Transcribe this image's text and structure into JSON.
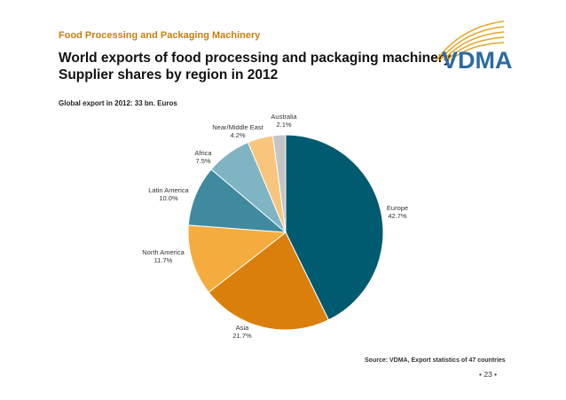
{
  "header": {
    "kicker": "Food Processing and Packaging Machinery",
    "title_line1": "World exports of food processing and packaging machinery",
    "title_line2": "Supplier shares by region in 2012",
    "note": "Global export in 2012: 33 bn. Euros",
    "logo_text": "VDMA",
    "logo_icon": "vdma-arc-logo"
  },
  "footer": {
    "source": "Source: VDMA, Export statistics of 47 countries",
    "page_number": "• 23 •"
  },
  "colors": {
    "kicker": "#c5800f",
    "logo_blue": "#2c6aa5",
    "logo_arcs": "#e2a72a"
  },
  "chart_data": {
    "type": "pie",
    "title": "",
    "start_angle_deg": 0,
    "direction": "clockwise",
    "slices": [
      {
        "label": "Europe",
        "value": 42.7,
        "value_label": "42.7%",
        "color": "#005a70"
      },
      {
        "label": "Asia",
        "value": 21.7,
        "value_label": "21.7%",
        "color": "#da7f0b"
      },
      {
        "label": "North America",
        "value": 11.7,
        "value_label": "11.7%",
        "color": "#f5ab3d"
      },
      {
        "label": "Latin America",
        "value": 10.0,
        "value_label": "10.0%",
        "color": "#3f8a9f"
      },
      {
        "label": "Africa",
        "value": 7.5,
        "value_label": "7.5%",
        "color": "#7fb4c3"
      },
      {
        "label": "Near/Middle East",
        "value": 4.2,
        "value_label": "4.2%",
        "color": "#f8c57c"
      },
      {
        "label": "Australia",
        "value": 2.1,
        "value_label": "2.1%",
        "color": "#c4c4c4"
      }
    ]
  }
}
